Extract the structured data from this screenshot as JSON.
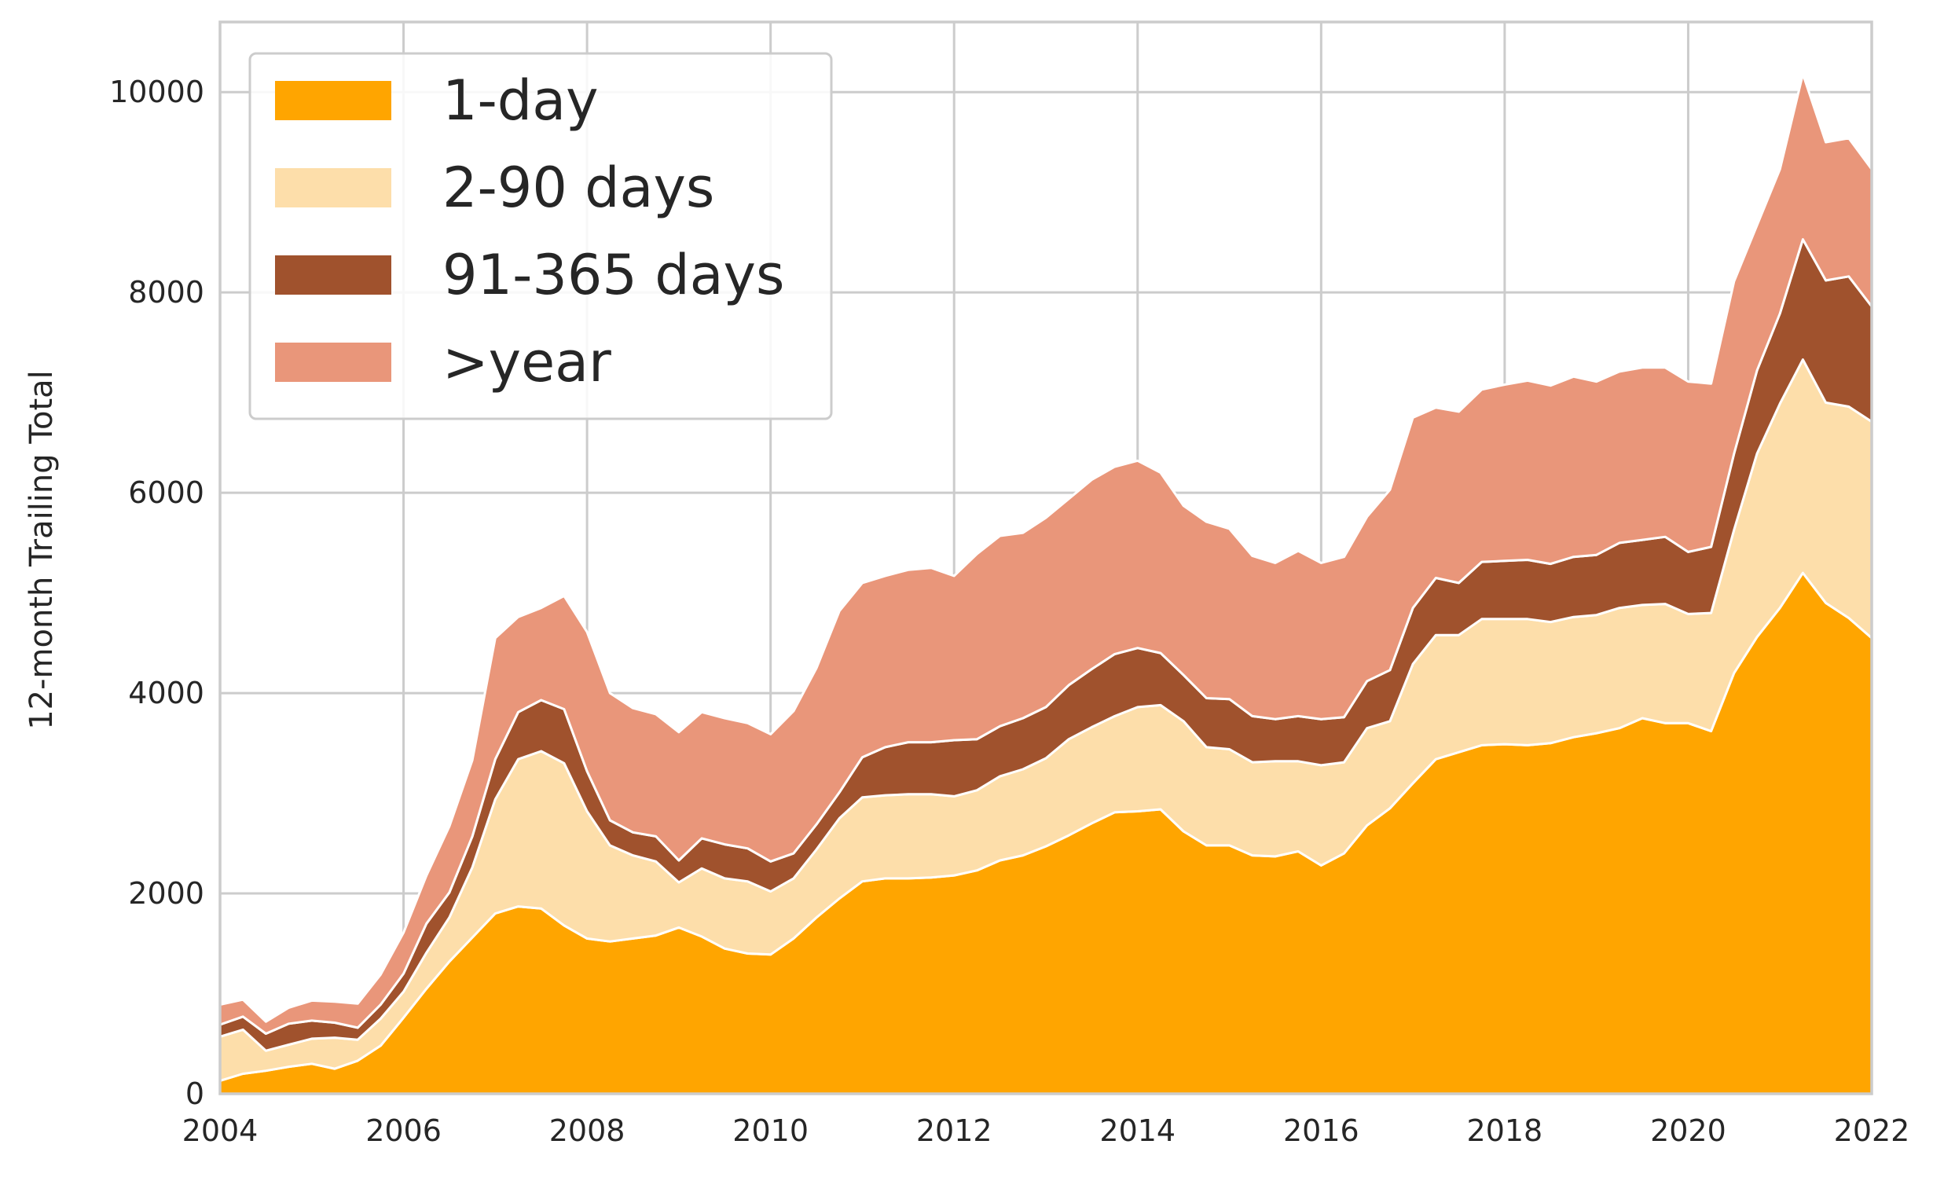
{
  "chart_data": {
    "type": "area",
    "stacked": true,
    "title": "",
    "xlabel": "",
    "ylabel": "12-month Trailing Total",
    "xlim": [
      2004,
      2022
    ],
    "ylim": [
      0,
      10700
    ],
    "xticks": [
      2004,
      2006,
      2008,
      2010,
      2012,
      2014,
      2016,
      2018,
      2020,
      2022
    ],
    "yticks": [
      0,
      2000,
      4000,
      6000,
      8000,
      10000
    ],
    "grid": true,
    "legend_position": "top-left",
    "x": [
      2004.0,
      2004.25,
      2004.5,
      2004.75,
      2005.0,
      2005.25,
      2005.5,
      2005.75,
      2006.0,
      2006.25,
      2006.5,
      2006.75,
      2007.0,
      2007.25,
      2007.5,
      2007.75,
      2008.0,
      2008.25,
      2008.5,
      2008.75,
      2009.0,
      2009.25,
      2009.5,
      2009.75,
      2010.0,
      2010.25,
      2010.5,
      2010.75,
      2011.0,
      2011.25,
      2011.5,
      2011.75,
      2012.0,
      2012.25,
      2012.5,
      2012.75,
      2013.0,
      2013.25,
      2013.5,
      2013.75,
      2014.0,
      2014.25,
      2014.5,
      2014.75,
      2015.0,
      2015.25,
      2015.5,
      2015.75,
      2016.0,
      2016.25,
      2016.5,
      2016.75,
      2017.0,
      2017.25,
      2017.5,
      2017.75,
      2018.0,
      2018.25,
      2018.5,
      2018.75,
      2019.0,
      2019.25,
      2019.5,
      2019.75,
      2020.0,
      2020.25,
      2020.5,
      2020.75,
      2021.0,
      2021.25,
      2021.5,
      2021.75,
      2022.0
    ],
    "series": [
      {
        "name": "1-day",
        "color": "#FFA500",
        "values": [
          130,
          200,
          230,
          270,
          300,
          250,
          330,
          480,
          760,
          1050,
          1320,
          1560,
          1800,
          1870,
          1850,
          1680,
          1550,
          1520,
          1550,
          1580,
          1660,
          1570,
          1450,
          1400,
          1390,
          1550,
          1760,
          1950,
          2120,
          2150,
          2150,
          2160,
          2180,
          2230,
          2330,
          2380,
          2470,
          2580,
          2700,
          2810,
          2820,
          2840,
          2620,
          2480,
          2480,
          2380,
          2370,
          2420,
          2280,
          2400,
          2680,
          2850,
          3100,
          3340,
          3410,
          3480,
          3490,
          3480,
          3500,
          3560,
          3600,
          3650,
          3750,
          3700,
          3700,
          3620,
          4200,
          4560,
          4850,
          5200,
          4900,
          4750,
          4550
        ]
      },
      {
        "name": "2-90 days",
        "color": "#FDDEAA",
        "values": [
          440,
          440,
          200,
          220,
          250,
          310,
          210,
          270,
          260,
          360,
          440,
          700,
          1140,
          1470,
          1570,
          1620,
          1270,
          960,
          830,
          740,
          450,
          680,
          700,
          720,
          630,
          600,
          680,
          800,
          840,
          830,
          840,
          830,
          790,
          800,
          840,
          860,
          880,
          960,
          960,
          960,
          1040,
          1040,
          1100,
          980,
          960,
          930,
          950,
          900,
          1000,
          910,
          970,
          870,
          1190,
          1240,
          1170,
          1260,
          1250,
          1260,
          1210,
          1200,
          1180,
          1200,
          1130,
          1190,
          1090,
          1180,
          1430,
          1830,
          2040,
          2130,
          2000,
          2110,
          2160
        ]
      },
      {
        "name": "91-365 days",
        "color": "#A0522D",
        "values": [
          120,
          130,
          170,
          210,
          180,
          150,
          120,
          140,
          180,
          290,
          250,
          310,
          400,
          470,
          510,
          540,
          400,
          250,
          230,
          250,
          220,
          300,
          340,
          330,
          300,
          250,
          250,
          260,
          400,
          480,
          520,
          520,
          560,
          510,
          500,
          510,
          510,
          540,
          580,
          620,
          590,
          520,
          460,
          490,
          500,
          460,
          420,
          450,
          460,
          450,
          470,
          510,
          560,
          570,
          520,
          570,
          580,
          590,
          580,
          600,
          600,
          650,
          650,
          670,
          620,
          660,
          760,
          830,
          900,
          1200,
          1220,
          1300,
          1150
        ]
      },
      {
        "name": ">year",
        "color": "#E9967A",
        "values": [
          200,
          170,
          120,
          160,
          200,
          210,
          240,
          300,
          410,
          480,
          660,
          760,
          1210,
          950,
          920,
          1130,
          1390,
          1270,
          1240,
          1220,
          1280,
          1260,
          1260,
          1250,
          1270,
          1420,
          1560,
          1810,
          1740,
          1710,
          1720,
          1740,
          1640,
          1850,
          1900,
          1850,
          1890,
          1860,
          1890,
          1870,
          1870,
          1800,
          1690,
          1760,
          1700,
          1600,
          1560,
          1650,
          1560,
          1600,
          1640,
          1800,
          1900,
          1700,
          1710,
          1720,
          1760,
          1790,
          1780,
          1800,
          1730,
          1710,
          1720,
          1690,
          1700,
          1630,
          1720,
          1450,
          1440,
          1650,
          1380,
          1380,
          1370
        ]
      }
    ]
  }
}
